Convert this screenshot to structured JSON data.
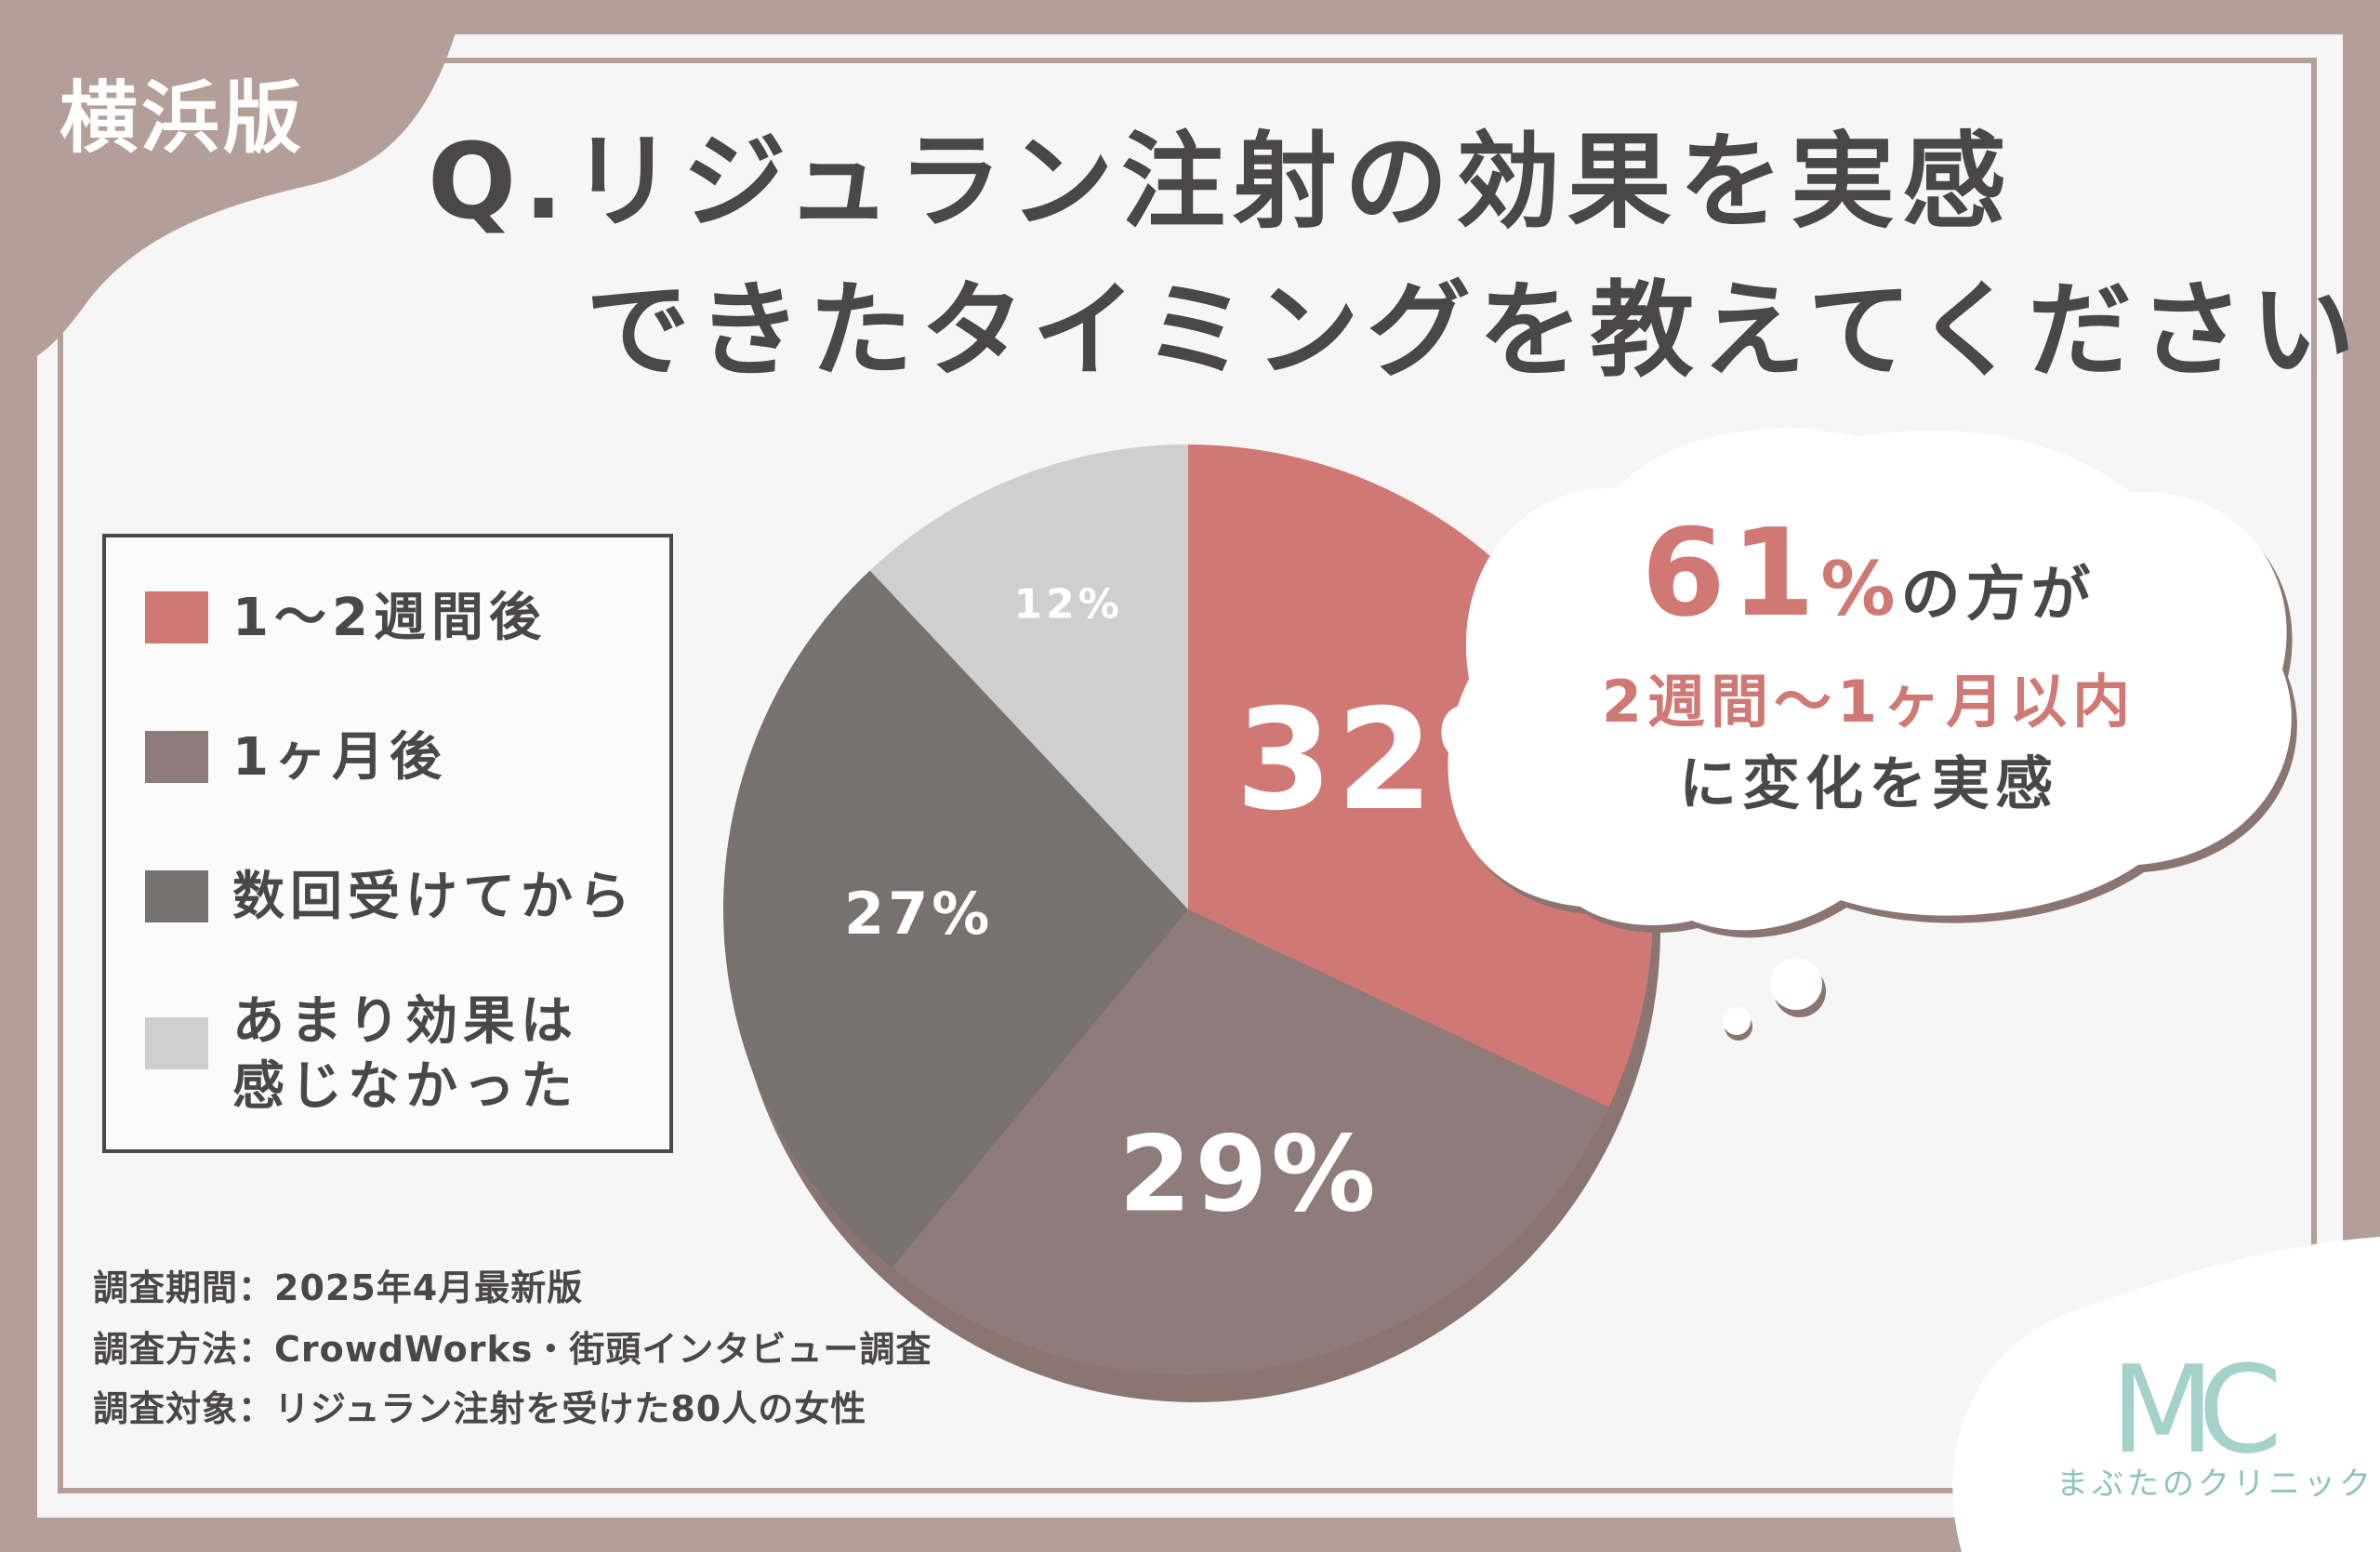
{
  "edition_tag": "横浜版",
  "question": {
    "line1": "Q.リジュラン注射の効果を実感",
    "line2": "できたタイミングを教えてください"
  },
  "chart_data": {
    "type": "pie",
    "categories": [
      "1〜2週間後",
      "1ヶ月後",
      "数回受けてから",
      "あまり効果は\n感じなかった"
    ],
    "values": [
      32,
      29,
      27,
      12
    ],
    "data_labels": [
      "32%",
      "29%",
      "27%",
      "12%"
    ],
    "colors": [
      "#d07874",
      "#8e7b7a",
      "#777170",
      "#cfcfcf"
    ],
    "legend_position": "left"
  },
  "callout": {
    "percent_number": "61",
    "percent_sign": "%",
    "suffix": "の方が",
    "line2": "2週間〜1ヶ月以内",
    "line3": "に変化を実感"
  },
  "notes": [
    "調査期間：2025年4月最新版",
    "調査方法：CrowdWorks・街頭インタビュー調査",
    "調査対象：リジュラン注射を受けた80人の女性"
  ],
  "logo": {
    "mark": "MC",
    "name": "まぶたのクリニック"
  },
  "colors": {
    "frame": "#b39f98",
    "accent": "#d07874",
    "text_dark": "#4a4748"
  }
}
